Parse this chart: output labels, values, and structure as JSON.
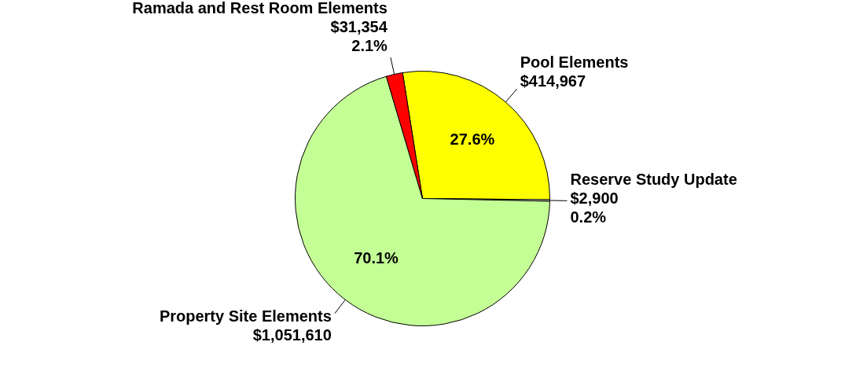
{
  "chart_data": {
    "type": "pie",
    "categories": [
      "Pool Elements",
      "Reserve Study Update",
      "Property Site Elements",
      "Ramada and Rest Room Elements"
    ],
    "values": [
      414967,
      2900,
      1051610,
      31354
    ],
    "colors": [
      "#ffff00",
      "#ffffff",
      "#c4ff96",
      "#ff0000"
    ],
    "value_labels": [
      "$414,967",
      "$2,900",
      "$1,051,610",
      "$31,354"
    ],
    "annotations": [
      {
        "text": "27.6%",
        "x": "Pool Elements"
      },
      {
        "text": "0.2%",
        "x": "Reserve Study Update"
      },
      {
        "text": "70.1%",
        "x": "Property Site Elements"
      },
      {
        "text": "2.1%",
        "x": "Ramada and Rest Room Elements"
      }
    ],
    "legend": false
  }
}
